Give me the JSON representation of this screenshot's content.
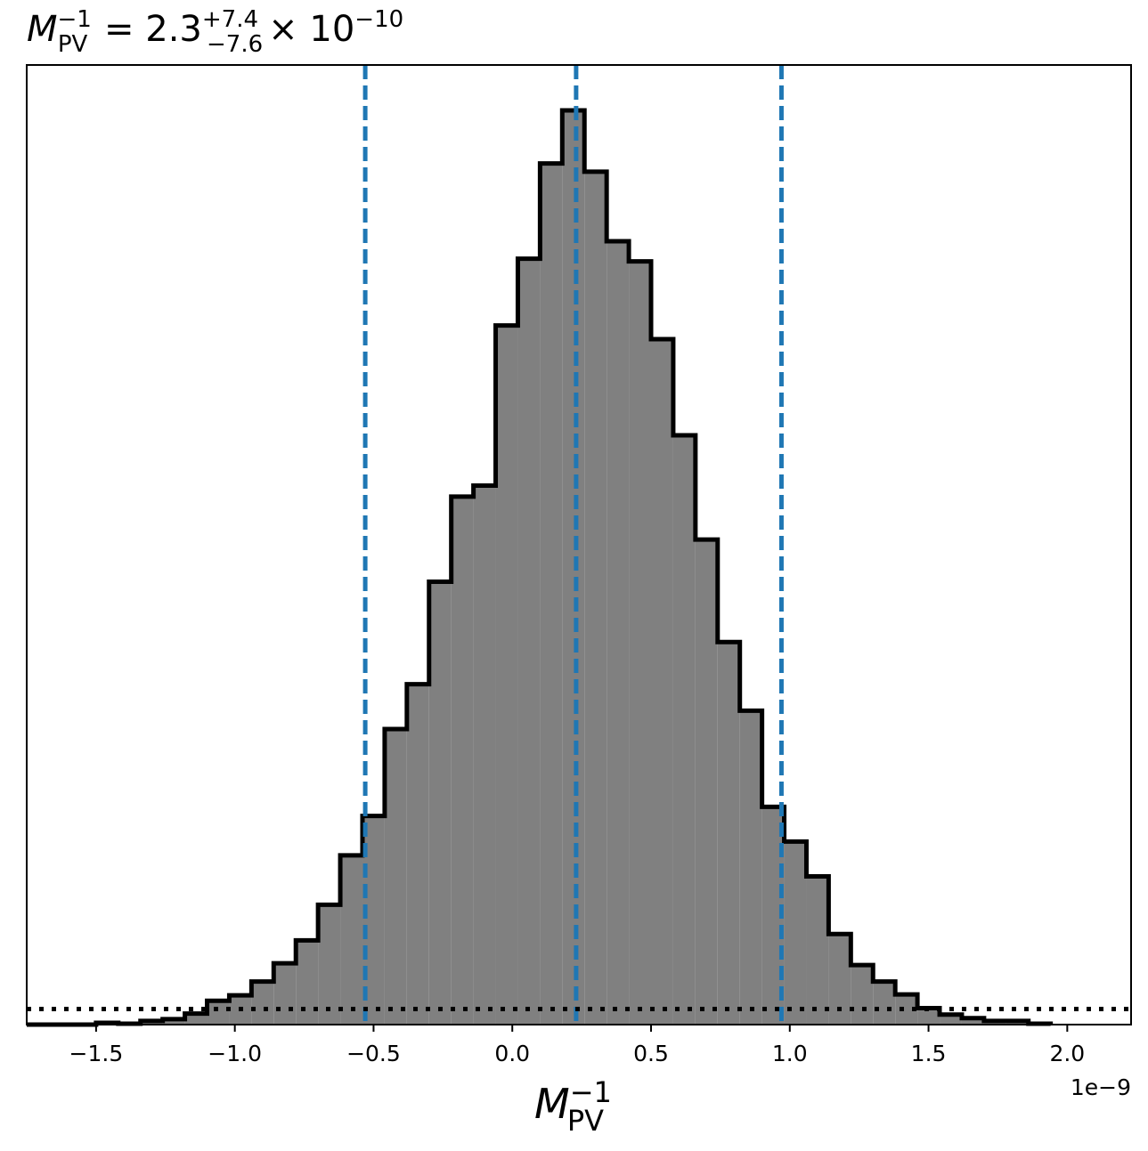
{
  "chart_data": {
    "type": "bar",
    "title": {
      "symbol": "M",
      "sup": "−1",
      "sub": "PV",
      "equals": " = 2.3",
      "err_plus": "+7.4",
      "err_minus": "−7.6",
      "multiplier": "× 10",
      "exponent": "−10"
    },
    "xlabel": {
      "symbol": "M",
      "sup": "−1",
      "sub": "PV"
    },
    "x_offset_label": "1e−9",
    "xlim": [
      -1.75e-09,
      2.23e-09
    ],
    "ylim": [
      0,
      1.0
    ],
    "grid": false,
    "x_ticks": [
      {
        "value": -1.5e-09,
        "label": "−1.5"
      },
      {
        "value": -1e-09,
        "label": "−1.0"
      },
      {
        "value": -5e-10,
        "label": "−0.5"
      },
      {
        "value": 0.0,
        "label": "0.0"
      },
      {
        "value": 5e-10,
        "label": "0.5"
      },
      {
        "value": 1e-09,
        "label": "1.0"
      },
      {
        "value": 1.5e-09,
        "label": "1.5"
      },
      {
        "value": 2e-09,
        "label": "2.0"
      }
    ],
    "histogram": {
      "fill_color": "#808080",
      "edge_color": "#000000",
      "bin_edges": [
        -1.75e-09,
        -1.5e-09,
        -1.42e-09,
        -1.34e-09,
        -1.26e-09,
        -1.18e-09,
        -1.1e-09,
        -1.02e-09,
        -9.4e-10,
        -8.6e-10,
        -7.8e-10,
        -7e-10,
        -6.2e-10,
        -5.4e-10,
        -4.6e-10,
        -3.8e-10,
        -3e-10,
        -2.2e-10,
        -1.4e-10,
        -6e-11,
        2e-11,
        1e-10,
        1.8e-10,
        2.6e-10,
        3.4e-10,
        4.2e-10,
        5e-10,
        5.8e-10,
        6.6e-10,
        7.4e-10,
        8.2e-10,
        9e-10,
        9.8e-10,
        1.06e-09,
        1.14e-09,
        1.22e-09,
        1.3e-09,
        1.38e-09,
        1.46e-09,
        1.54e-09,
        1.62e-09,
        1.7e-09,
        1.78e-09,
        1.86e-09,
        1.94e-09
      ],
      "values": [
        0,
        0.002,
        0.001,
        0.004,
        0.006,
        0.012,
        0.026,
        0.032,
        0.047,
        0.067,
        0.092,
        0.131,
        0.185,
        0.228,
        0.323,
        0.372,
        0.484,
        0.577,
        0.589,
        0.764,
        0.837,
        0.941,
        0.999,
        0.932,
        0.856,
        0.834,
        0.749,
        0.644,
        0.53,
        0.418,
        0.343,
        0.238,
        0.2,
        0.162,
        0.099,
        0.065,
        0.047,
        0.033,
        0.018,
        0.011,
        0.007,
        0.004,
        0.004,
        0.001
      ]
    },
    "reference_lines": [
      {
        "orientation": "vertical",
        "value": -5.3e-10,
        "style": "dashed",
        "color": "#1f77b4"
      },
      {
        "orientation": "vertical",
        "value": 2.3e-10,
        "style": "dashed",
        "color": "#1f77b4"
      },
      {
        "orientation": "vertical",
        "value": 9.7e-10,
        "style": "dotted-dashed",
        "color": "#1f77b4"
      },
      {
        "orientation": "horizontal",
        "value": 0.017,
        "style": "dotted",
        "color": "#000000"
      }
    ]
  }
}
